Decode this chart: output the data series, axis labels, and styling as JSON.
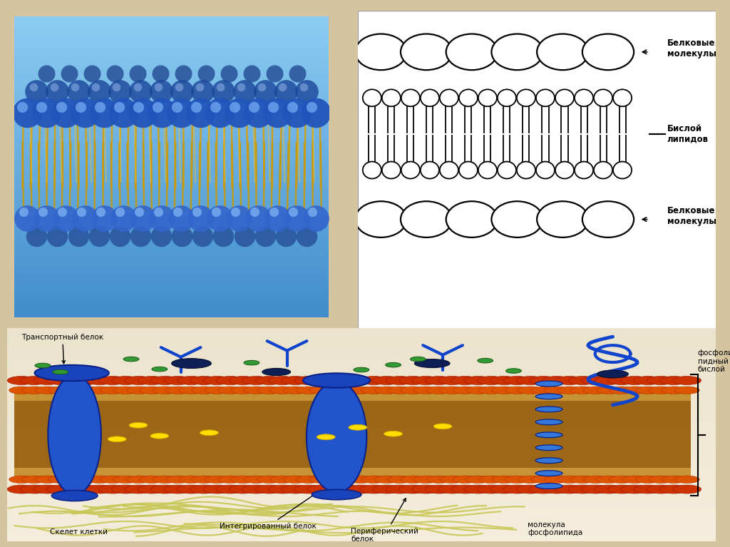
{
  "background_color": "#d4c5a0",
  "fig_width": 10.24,
  "fig_height": 7.67,
  "dpi": 100,
  "label_belkovye_top": "Белковые\nмолекулы",
  "label_bisloy": "Бислой\nлипидов",
  "label_belkovye_bot": "Белковые\nмолекулы",
  "label_transport": "Транспортный белок",
  "label_fosfolipidny": "фосфоли-\nпидный\nбислой",
  "label_integ": "Интегрированный белок",
  "label_periph": "Периферический\nбелок",
  "label_skelet": "Скелет клетки",
  "label_molekula": "молекула\nфосфолипида"
}
